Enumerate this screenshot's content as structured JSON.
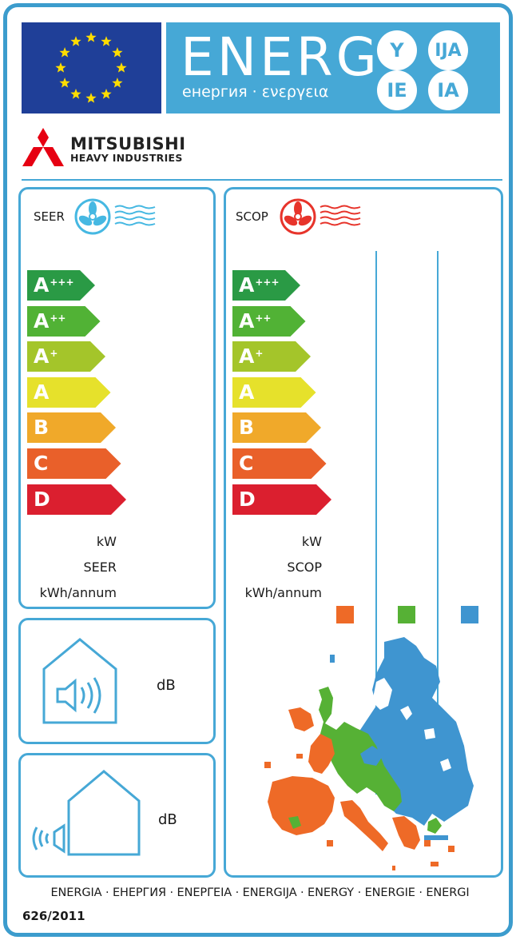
{
  "header": {
    "energy_word": "ENERG",
    "energy_sub": "енергия · ενεργεια",
    "suffixes": [
      "Y",
      "IJA",
      "IE",
      "IA"
    ],
    "flag_icon": "eu-flag-icon",
    "colors": {
      "flag_blue": "#1f3f98",
      "banner_blue": "#46a8d6",
      "star_yellow": "#ffdd00"
    }
  },
  "brand": {
    "name": "MITSUBISHI",
    "sub": "HEAVY INDUSTRIES",
    "logo_icon": "three-diamonds-logo-icon",
    "logo_color": "#e60012"
  },
  "seer_panel": {
    "title": "SEER",
    "icon": "cooling-fan-icon",
    "classes": [
      {
        "letter": "A",
        "sup": "+++",
        "color": "#2a9a45"
      },
      {
        "letter": "A",
        "sup": "++",
        "color": "#51b235"
      },
      {
        "letter": "A",
        "sup": "+",
        "color": "#a4c52a"
      },
      {
        "letter": "A",
        "sup": "",
        "color": "#e6e12b"
      },
      {
        "letter": "B",
        "sup": "",
        "color": "#f0a92a"
      },
      {
        "letter": "C",
        "sup": "",
        "color": "#e9602a"
      },
      {
        "letter": "D",
        "sup": "",
        "color": "#db1f2f"
      }
    ],
    "units": [
      "kW",
      "SEER",
      "kWh/annum"
    ]
  },
  "scop_panel": {
    "title": "SCOP",
    "icon": "heating-fan-icon",
    "classes": [
      {
        "letter": "A",
        "sup": "+++",
        "color": "#2a9a45"
      },
      {
        "letter": "A",
        "sup": "++",
        "color": "#51b235"
      },
      {
        "letter": "A",
        "sup": "+",
        "color": "#a4c52a"
      },
      {
        "letter": "A",
        "sup": "",
        "color": "#e6e12b"
      },
      {
        "letter": "B",
        "sup": "",
        "color": "#f0a92a"
      },
      {
        "letter": "C",
        "sup": "",
        "color": "#e9602a"
      },
      {
        "letter": "D",
        "sup": "",
        "color": "#db1f2f"
      }
    ],
    "units": [
      "kW",
      "SCOP",
      "kWh/annum"
    ],
    "climate_colors": [
      "#ee6a27",
      "#56b135",
      "#3f95d0"
    ],
    "map_icon": "europe-climate-map-icon"
  },
  "noise_indoor": {
    "unit": "dB",
    "icon": "indoor-sound-house-icon"
  },
  "noise_outdoor": {
    "unit": "dB",
    "icon": "outdoor-sound-house-icon"
  },
  "footer": {
    "languages": "ENERGIA · ЕНЕРГИЯ · ΕΝΕΡΓΕΙΑ · ENERGIJA · ENERGY · ENERGIE · ENERGI",
    "regulation": "626/2011"
  }
}
